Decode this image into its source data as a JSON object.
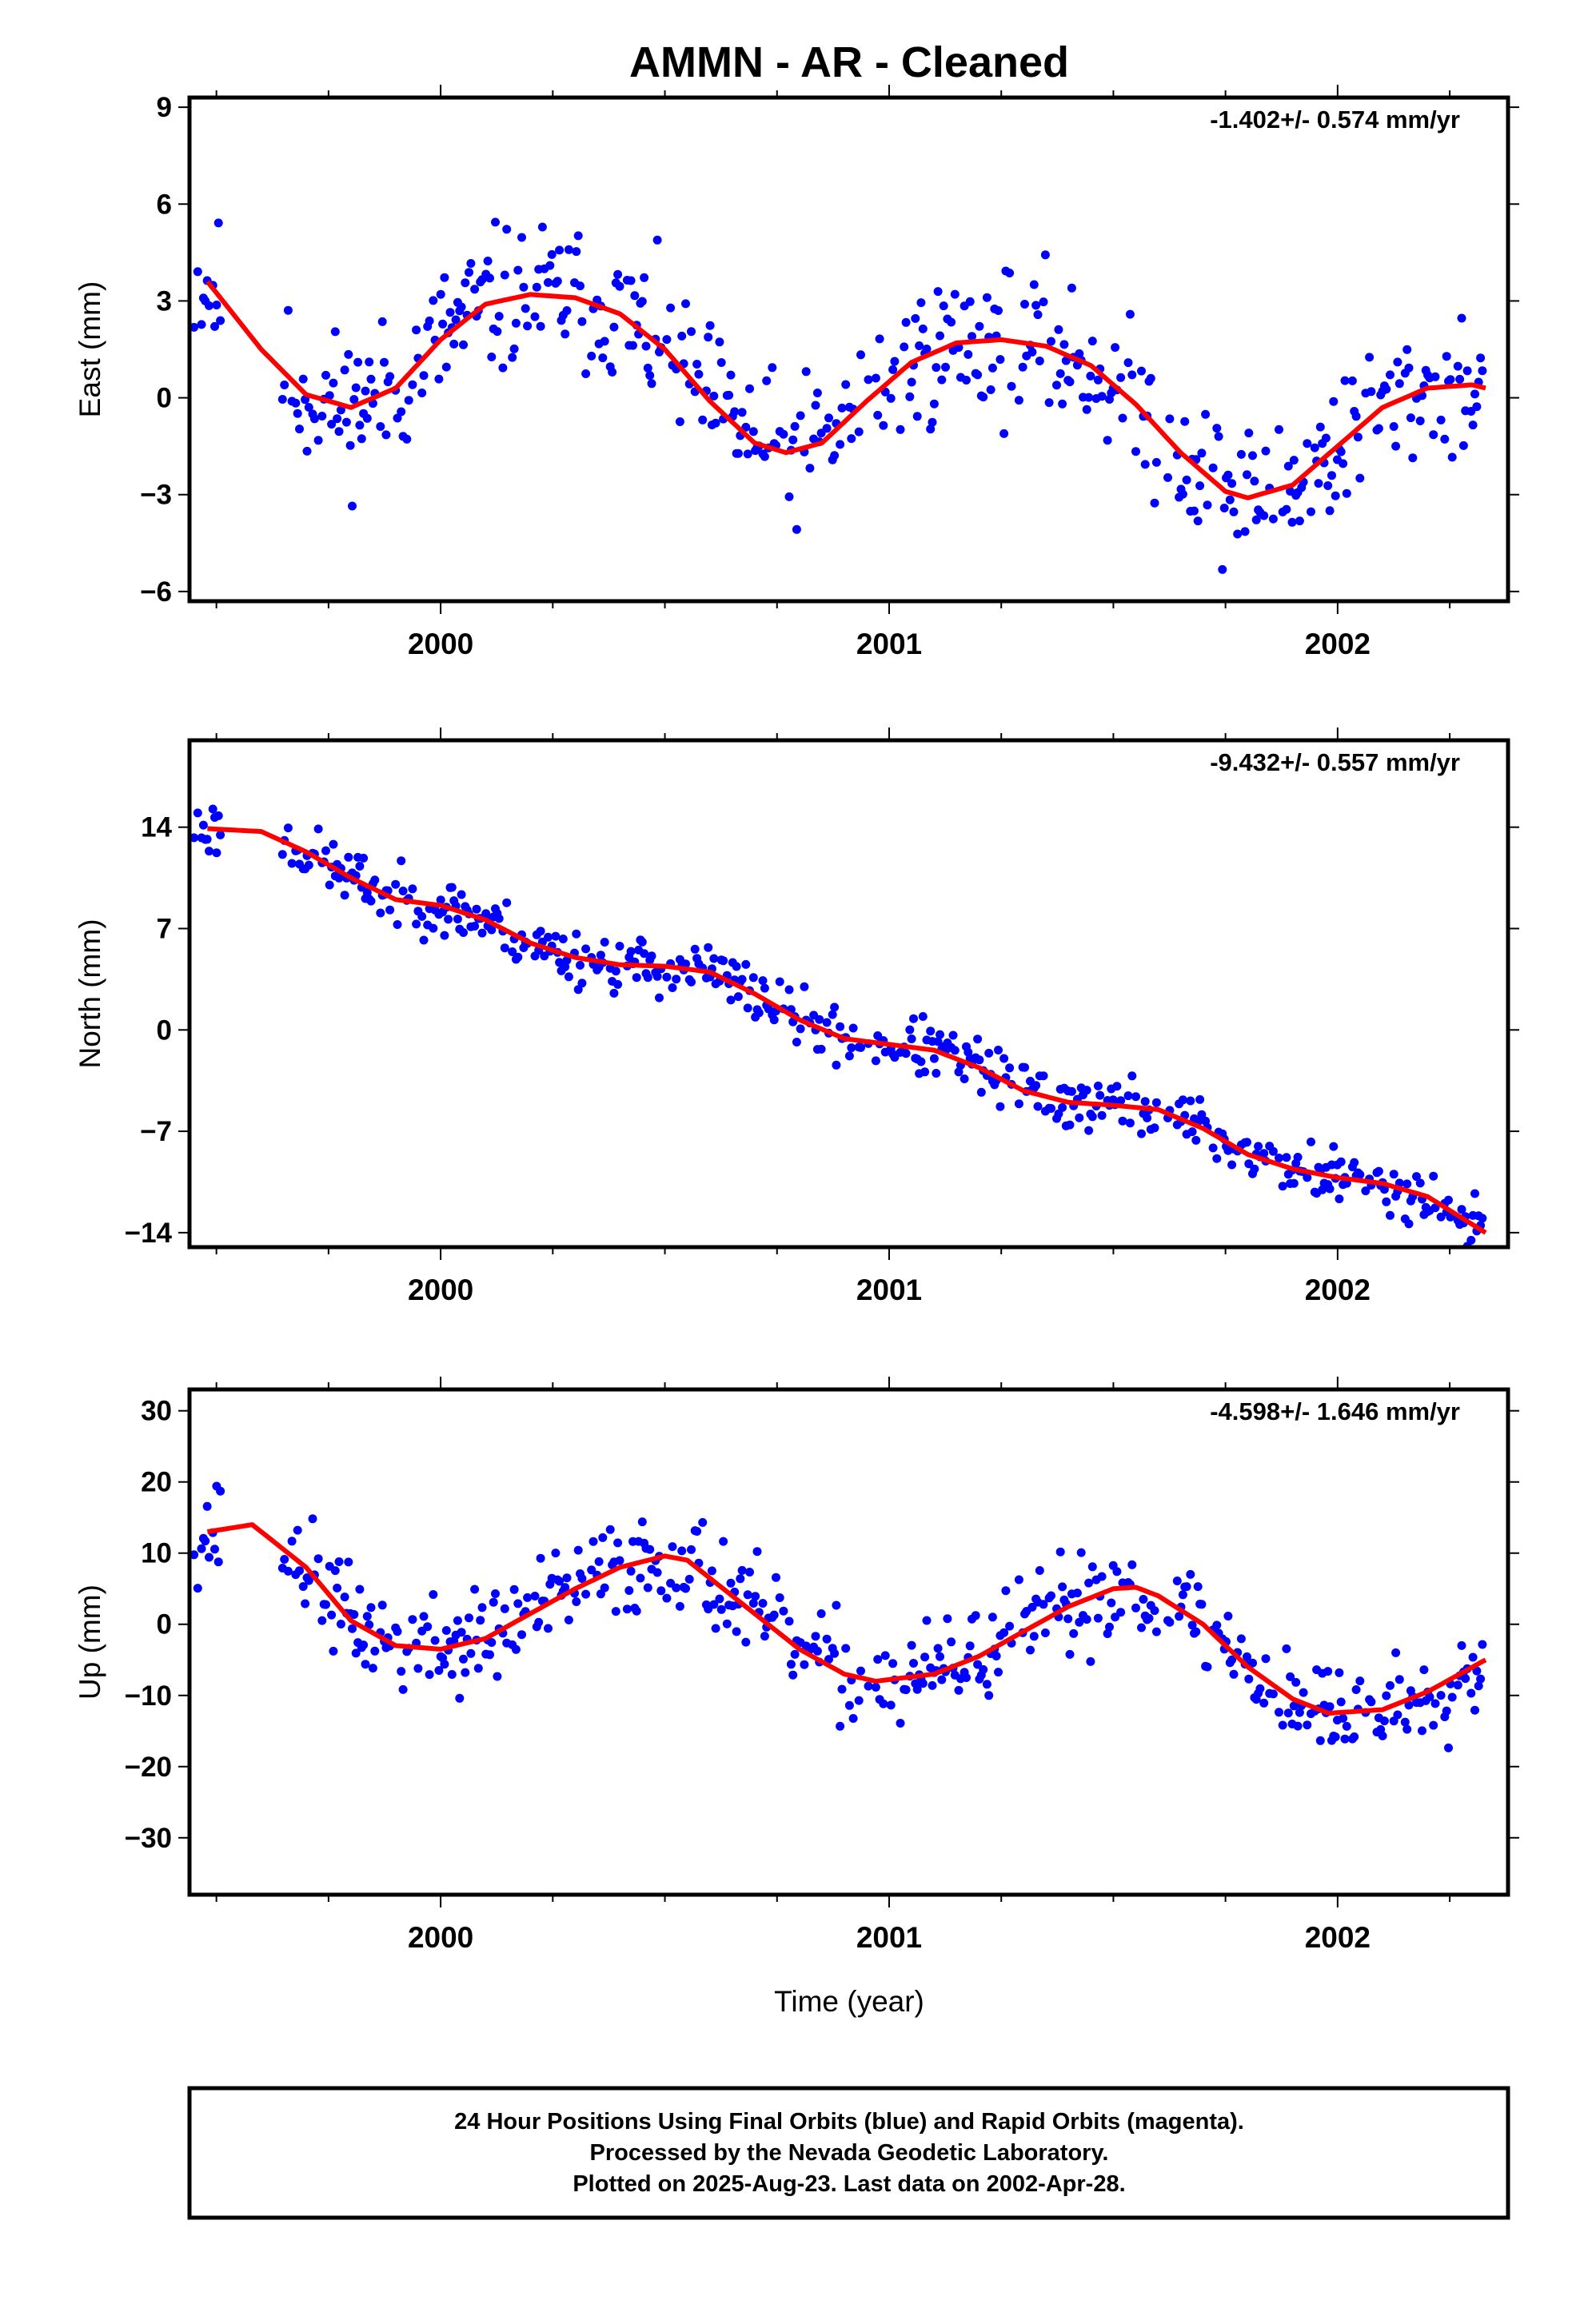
{
  "chart_data": {
    "type": "scatter",
    "title": "AMMN  - AR - Cleaned",
    "xlabel": "Time (year)",
    "xlim": [
      1999.44,
      2002.38
    ],
    "x_ticks": [
      2000,
      2001,
      2002
    ],
    "x_tick_labels": [
      "2000",
      "2001",
      "2002"
    ],
    "legend": [],
    "colors": {
      "points_final": "#0000ff",
      "points_rapid": "#ff00ff",
      "fit": "#ff0000"
    },
    "panels": [
      {
        "id": "east",
        "ylabel": "East (mm)",
        "ylim": [
          -6.3,
          9.3
        ],
        "y_ticks": [
          -6,
          -3,
          0,
          3,
          6,
          9
        ],
        "y_tick_labels": [
          "−6",
          "−3",
          "0",
          "3",
          "6",
          "9"
        ],
        "rate": "-1.402+/- 0.574 mm/yr",
        "seed": 11,
        "noise": 1.6,
        "fit_x": [
          1999.48,
          1999.6,
          1999.7,
          1999.8,
          1999.9,
          2000.0,
          2000.1,
          2000.2,
          2000.3,
          2000.4,
          2000.5,
          2000.6,
          2000.7,
          2000.77,
          2000.85,
          2000.95,
          2001.05,
          2001.15,
          2001.25,
          2001.35,
          2001.45,
          2001.55,
          2001.65,
          2001.75,
          2001.8,
          2001.9,
          2002.0,
          2002.1,
          2002.2,
          2002.3,
          2002.33
        ],
        "fit_y": [
          3.6,
          1.5,
          0.1,
          -0.3,
          0.3,
          1.8,
          2.9,
          3.2,
          3.1,
          2.6,
          1.5,
          -0.1,
          -1.4,
          -1.7,
          -1.4,
          -0.1,
          1.1,
          1.7,
          1.8,
          1.6,
          1.0,
          -0.2,
          -1.7,
          -2.9,
          -3.1,
          -2.7,
          -1.5,
          -0.3,
          0.3,
          0.4,
          0.3
        ]
      },
      {
        "id": "north",
        "ylabel": "North (mm)",
        "ylim": [
          -15,
          20
        ],
        "y_ticks": [
          -14,
          -7,
          0,
          7,
          14
        ],
        "y_tick_labels": [
          "−14",
          "−7",
          "0",
          "7",
          "14"
        ],
        "rate": "-9.432+/- 0.557 mm/yr",
        "seed": 23,
        "noise": 1.4,
        "fit_x": [
          1999.48,
          1999.6,
          1999.7,
          1999.8,
          1999.9,
          2000.0,
          2000.1,
          2000.2,
          2000.3,
          2000.4,
          2000.5,
          2000.6,
          2000.7,
          2000.8,
          2000.9,
          2001.0,
          2001.1,
          2001.2,
          2001.3,
          2001.4,
          2001.5,
          2001.6,
          2001.7,
          2001.8,
          2001.9,
          2002.0,
          2002.1,
          2002.2,
          2002.33
        ],
        "fit_y": [
          13.9,
          13.7,
          12.3,
          10.5,
          9.0,
          8.6,
          7.6,
          6.0,
          5.0,
          4.5,
          4.4,
          4.0,
          2.5,
          0.7,
          -0.6,
          -1.0,
          -1.4,
          -2.6,
          -4.2,
          -5.0,
          -5.2,
          -5.5,
          -6.8,
          -8.6,
          -9.6,
          -10.2,
          -10.6,
          -11.5,
          -14.0
        ]
      },
      {
        "id": "up",
        "ylabel": "Up (mm)",
        "ylim": [
          -38,
          33
        ],
        "y_ticks": [
          -30,
          -20,
          -10,
          0,
          10,
          20,
          30
        ],
        "y_tick_labels": [
          "−30",
          "−20",
          "−10",
          "0",
          "10",
          "20",
          "30"
        ],
        "rate": "-4.598+/- 1.646 mm/yr",
        "seed": 37,
        "noise": 5.0,
        "fit_x": [
          1999.48,
          1999.58,
          1999.7,
          1999.8,
          1999.9,
          2000.0,
          2000.1,
          2000.2,
          2000.3,
          2000.4,
          2000.5,
          2000.55,
          2000.6,
          2000.7,
          2000.8,
          2000.9,
          2000.97,
          2001.1,
          2001.2,
          2001.3,
          2001.4,
          2001.5,
          2001.55,
          2001.6,
          2001.7,
          2001.8,
          2001.9,
          2001.98,
          2002.1,
          2002.2,
          2002.33
        ],
        "fit_y": [
          13.0,
          14.0,
          8.0,
          0.5,
          -3.0,
          -3.5,
          -2.0,
          1.5,
          5.0,
          8.0,
          9.6,
          9.0,
          6.5,
          1.5,
          -3.5,
          -7.0,
          -8.0,
          -7.0,
          -4.5,
          -1.0,
          2.5,
          5.0,
          5.2,
          4.0,
          0.0,
          -6.0,
          -10.5,
          -12.5,
          -12.0,
          -9.5,
          -5.0
        ]
      }
    ]
  },
  "footer": {
    "lines": [
      "24 Hour Positions Using Final Orbits (blue) and Rapid Orbits (magenta).",
      "Processed by the Nevada Geodetic Laboratory.",
      "Plotted on 2025-Aug-23. Last data on 2002-Apr-28."
    ]
  }
}
